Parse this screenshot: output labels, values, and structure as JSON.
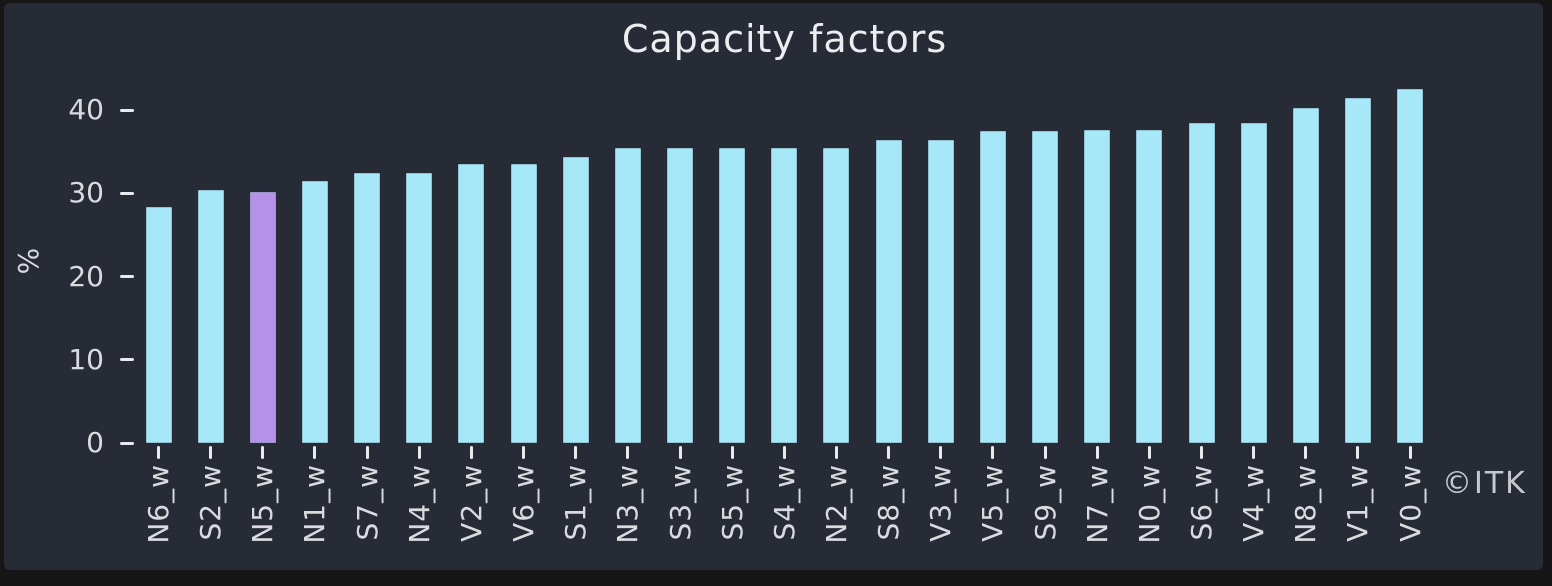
{
  "window": {
    "outer_background": "#161616"
  },
  "chart_data": {
    "type": "bar",
    "title": "Capacity factors",
    "ylabel": "%",
    "xlabel": "",
    "watermark": "©ITK",
    "categories": [
      "N6_w",
      "S2_w",
      "N5_w",
      "N1_w",
      "S7_w",
      "N4_w",
      "V2_w",
      "V6_w",
      "S1_w",
      "N3_w",
      "S3_w",
      "S5_w",
      "S4_w",
      "N2_w",
      "S8_w",
      "V3_w",
      "V5_w",
      "S9_w",
      "N7_w",
      "N0_w",
      "S6_w",
      "V4_w",
      "N8_w",
      "V1_w",
      "V0_w"
    ],
    "values": [
      28.4,
      30.4,
      30.2,
      31.5,
      32.4,
      32.4,
      33.5,
      33.5,
      34.4,
      35.5,
      35.5,
      35.5,
      35.5,
      35.5,
      36.4,
      36.4,
      37.5,
      37.5,
      37.6,
      37.6,
      38.5,
      38.5,
      40.3,
      41.5,
      42.5
    ],
    "highlight_index": 2,
    "highlight_category": "N5_w",
    "yticks": [
      0,
      10,
      20,
      30,
      40
    ],
    "ylim": [
      0,
      43.5
    ],
    "grid": false,
    "legend": null,
    "colors": {
      "background": "#272b36",
      "bar": "#a6e8f8",
      "highlight_bar": "#b592e8",
      "title_text": "#ebedef",
      "tick_text": "#d9dbde",
      "tick_mark": "#e8eaec",
      "watermark_text": "#c6c9cc"
    }
  }
}
